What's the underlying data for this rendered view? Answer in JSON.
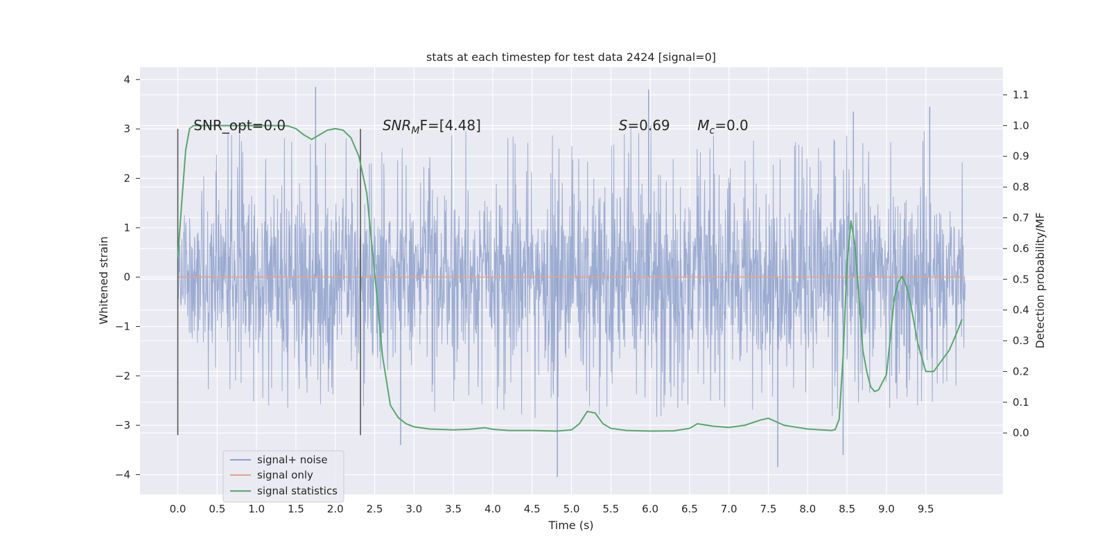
{
  "chart_data": {
    "type": "line",
    "title": "stats at each timestep for test data 2424 [signal=0]",
    "xlabel": "Time (s)",
    "ylabel_left": "Whitened strain",
    "ylabel_right": "Detection probability/MF",
    "xlim": [
      -0.48,
      10.48
    ],
    "ylim_left": [
      -4.4,
      4.25
    ],
    "ylim_right": [
      -0.2,
      1.19
    ],
    "grid": true,
    "x_ticks": [
      0.0,
      0.5,
      1.0,
      1.5,
      2.0,
      2.5,
      3.0,
      3.5,
      4.0,
      4.5,
      5.0,
      5.5,
      6.0,
      6.5,
      7.0,
      7.5,
      8.0,
      8.5,
      9.0,
      9.5
    ],
    "x_tick_labels": [
      "0.0",
      "0.5",
      "1.0",
      "1.5",
      "2.0",
      "2.5",
      "3.0",
      "3.5",
      "4.0",
      "4.5",
      "5.0",
      "5.5",
      "6.0",
      "6.5",
      "7.0",
      "7.5",
      "8.0",
      "8.5",
      "9.0",
      "9.5"
    ],
    "y_left_ticks": [
      4,
      3,
      2,
      1,
      0,
      -1,
      -2,
      -3,
      -4
    ],
    "y_left_tick_labels": [
      "4",
      "3",
      "2",
      "1",
      "0",
      "−1",
      "−2",
      "−3",
      "−4"
    ],
    "y_right_ticks": [
      1.1,
      1.0,
      0.9,
      0.8,
      0.7,
      0.6,
      0.5,
      0.4,
      0.3,
      0.2,
      0.1,
      0.0
    ],
    "y_right_tick_labels": [
      "1.1",
      "1.0",
      "0.9",
      "0.8",
      "0.7",
      "0.6",
      "0.5",
      "0.4",
      "0.3",
      "0.2",
      "0.1",
      "0.0"
    ],
    "legend": {
      "placement": "lower-left",
      "entries": [
        "signal+ noise",
        "signal only",
        "signal statistics"
      ]
    },
    "colors": {
      "noise": "#8da0cb",
      "signal_only": "#e5a28b",
      "stats": "#55a868",
      "background": "#eaeaf2",
      "grid": "#ffffff",
      "window": "#555555"
    },
    "series": [
      {
        "name": "signal+ noise",
        "axis": "left",
        "x_range": [
          0.0,
          10.0
        ],
        "envelope_upper": [
          [
            0.0,
            2.2
          ],
          [
            0.5,
            2.9
          ],
          [
            1.0,
            3.0
          ],
          [
            1.5,
            2.9
          ],
          [
            2.0,
            2.8
          ],
          [
            2.5,
            2.9
          ],
          [
            3.0,
            2.8
          ],
          [
            3.5,
            3.0
          ],
          [
            4.0,
            2.9
          ],
          [
            4.5,
            2.8
          ],
          [
            5.0,
            3.0
          ],
          [
            5.5,
            3.2
          ],
          [
            6.0,
            3.1
          ],
          [
            6.5,
            3.0
          ],
          [
            7.0,
            2.9
          ],
          [
            7.5,
            3.0
          ],
          [
            8.0,
            2.9
          ],
          [
            8.5,
            3.0
          ],
          [
            9.0,
            2.8
          ],
          [
            9.5,
            3.0
          ],
          [
            10.0,
            2.4
          ]
        ],
        "envelope_lower": [
          [
            0.0,
            -2.3
          ],
          [
            0.5,
            -2.7
          ],
          [
            1.0,
            -2.6
          ],
          [
            1.5,
            -2.8
          ],
          [
            2.0,
            -2.9
          ],
          [
            2.5,
            -2.6
          ],
          [
            3.0,
            -2.9
          ],
          [
            3.5,
            -2.7
          ],
          [
            4.0,
            -2.8
          ],
          [
            4.5,
            -2.9
          ],
          [
            5.0,
            -3.0
          ],
          [
            5.5,
            -2.8
          ],
          [
            6.0,
            -2.9
          ],
          [
            6.5,
            -2.8
          ],
          [
            7.0,
            -3.0
          ],
          [
            7.5,
            -2.8
          ],
          [
            8.0,
            -2.9
          ],
          [
            8.5,
            -2.8
          ],
          [
            9.0,
            -2.7
          ],
          [
            9.5,
            -2.8
          ],
          [
            10.0,
            -2.3
          ]
        ],
        "notable_spikes": [
          [
            1.75,
            3.85
          ],
          [
            5.98,
            3.8
          ],
          [
            4.82,
            -4.05
          ],
          [
            7.62,
            -3.85
          ],
          [
            8.45,
            -3.6
          ],
          [
            2.83,
            -3.4
          ],
          [
            8.58,
            3.35
          ],
          [
            9.55,
            3.45
          ]
        ]
      },
      {
        "name": "signal only",
        "axis": "left",
        "x": [
          0.0,
          10.0
        ],
        "y": [
          0.0,
          0.0
        ]
      },
      {
        "name": "signal statistics",
        "axis": "right",
        "x": [
          0.0,
          0.05,
          0.1,
          0.15,
          0.2,
          0.3,
          0.5,
          1.0,
          1.2,
          1.4,
          1.5,
          1.6,
          1.7,
          1.8,
          1.9,
          2.0,
          2.1,
          2.2,
          2.3,
          2.4,
          2.5,
          2.6,
          2.7,
          2.8,
          2.9,
          3.0,
          3.2,
          3.5,
          3.7,
          3.9,
          4.0,
          4.2,
          4.5,
          4.8,
          5.0,
          5.1,
          5.2,
          5.3,
          5.4,
          5.5,
          5.7,
          6.0,
          6.3,
          6.5,
          6.6,
          6.8,
          7.0,
          7.2,
          7.4,
          7.5,
          7.7,
          8.0,
          8.3,
          8.35,
          8.4,
          8.45,
          8.5,
          8.55,
          8.6,
          8.65,
          8.7,
          8.75,
          8.8,
          8.85,
          8.9,
          9.0,
          9.05,
          9.1,
          9.15,
          9.2,
          9.25,
          9.3,
          9.4,
          9.5,
          9.6,
          9.7,
          9.8,
          9.9,
          9.96
        ],
        "y": [
          0.57,
          0.75,
          0.92,
          0.99,
          1.0,
          1.0,
          1.0,
          1.0,
          1.0,
          0.999,
          0.99,
          0.97,
          0.955,
          0.97,
          0.985,
          0.99,
          0.985,
          0.96,
          0.9,
          0.78,
          0.52,
          0.25,
          0.09,
          0.05,
          0.03,
          0.02,
          0.013,
          0.01,
          0.012,
          0.017,
          0.012,
          0.008,
          0.008,
          0.006,
          0.01,
          0.03,
          0.07,
          0.065,
          0.03,
          0.015,
          0.008,
          0.006,
          0.007,
          0.015,
          0.03,
          0.022,
          0.018,
          0.025,
          0.042,
          0.048,
          0.025,
          0.013,
          0.008,
          0.011,
          0.045,
          0.25,
          0.55,
          0.69,
          0.61,
          0.45,
          0.27,
          0.2,
          0.15,
          0.135,
          0.14,
          0.19,
          0.31,
          0.44,
          0.49,
          0.51,
          0.48,
          0.43,
          0.29,
          0.2,
          0.2,
          0.235,
          0.27,
          0.33,
          0.37
        ]
      }
    ],
    "vertical_lines": [
      {
        "x": 0.0,
        "y_range": [
          -3.2,
          3.0
        ]
      },
      {
        "x": 2.32,
        "y_range": [
          -3.2,
          3.0
        ]
      }
    ],
    "annotations": [
      {
        "x": 0.2,
        "y": 3.0,
        "text": "SNR_opt=0.0"
      },
      {
        "x": 2.6,
        "y": 3.0,
        "text_base": "SNR",
        "text_sub": "M",
        "text_tail": "F=[4.48]"
      },
      {
        "x": 5.6,
        "y": 3.0,
        "text_base": "S",
        "text_tail": "=0.69"
      },
      {
        "x": 6.6,
        "y": 3.0,
        "text_base": "M",
        "text_sub": "c",
        "text_tail": "=0.0"
      }
    ]
  }
}
